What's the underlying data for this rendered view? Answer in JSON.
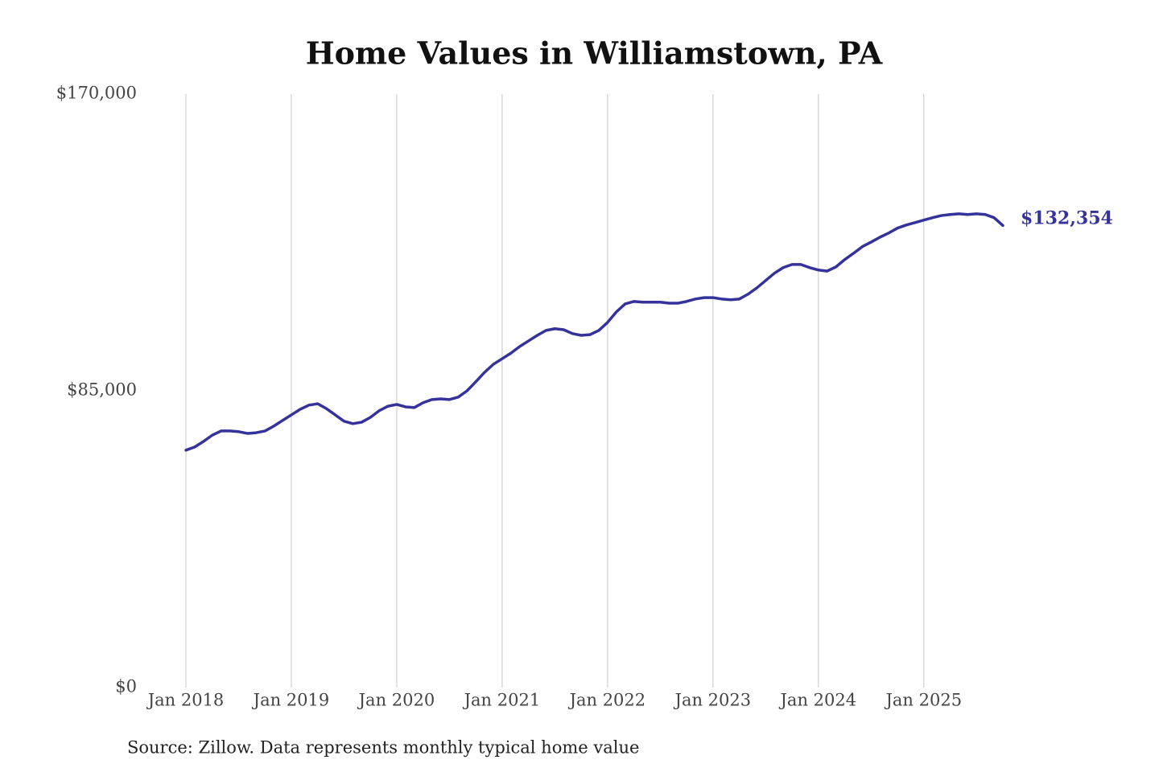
{
  "chart_data": {
    "type": "line",
    "title": "Home Values in Williamstown, PA",
    "source": "Source: Zillow. Data represents monthly typical home value",
    "x": [
      "2018-01",
      "2018-02",
      "2018-03",
      "2018-04",
      "2018-05",
      "2018-06",
      "2018-07",
      "2018-08",
      "2018-09",
      "2018-10",
      "2018-11",
      "2018-12",
      "2019-01",
      "2019-02",
      "2019-03",
      "2019-04",
      "2019-05",
      "2019-06",
      "2019-07",
      "2019-08",
      "2019-09",
      "2019-10",
      "2019-11",
      "2019-12",
      "2020-01",
      "2020-02",
      "2020-03",
      "2020-04",
      "2020-05",
      "2020-06",
      "2020-07",
      "2020-08",
      "2020-09",
      "2020-10",
      "2020-11",
      "2020-12",
      "2021-01",
      "2021-02",
      "2021-03",
      "2021-04",
      "2021-05",
      "2021-06",
      "2021-07",
      "2021-08",
      "2021-09",
      "2021-10",
      "2021-11",
      "2021-12",
      "2022-01",
      "2022-02",
      "2022-03",
      "2022-04",
      "2022-05",
      "2022-06",
      "2022-07",
      "2022-08",
      "2022-09",
      "2022-10",
      "2022-11",
      "2022-12",
      "2023-01",
      "2023-02",
      "2023-03",
      "2023-04",
      "2023-05",
      "2023-06",
      "2023-07",
      "2023-08",
      "2023-09",
      "2023-10",
      "2023-11",
      "2023-12",
      "2024-01",
      "2024-02",
      "2024-03",
      "2024-04",
      "2024-05",
      "2024-06",
      "2024-07",
      "2024-08",
      "2024-09",
      "2024-10",
      "2024-11",
      "2024-12",
      "2025-01",
      "2025-02",
      "2025-03",
      "2025-04",
      "2025-05",
      "2025-06",
      "2025-07",
      "2025-08",
      "2025-09",
      "2025-10"
    ],
    "series": [
      {
        "color": "#35339b",
        "values": [
          68000,
          68900,
          70500,
          72300,
          73500,
          73500,
          73300,
          72800,
          73000,
          73500,
          74900,
          76500,
          78100,
          79700,
          80900,
          81300,
          79900,
          78100,
          76300,
          75600,
          76000,
          77400,
          79300,
          80600,
          81100,
          80400,
          80200,
          81600,
          82500,
          82700,
          82500,
          83200,
          85000,
          87600,
          90300,
          92600,
          94200,
          95800,
          97700,
          99300,
          100900,
          102300,
          102800,
          102500,
          101400,
          100900,
          101100,
          102300,
          104600,
          107600,
          109900,
          110600,
          110400,
          110400,
          110400,
          110100,
          110100,
          110600,
          111300,
          111700,
          111700,
          111300,
          111100,
          111300,
          112700,
          114500,
          116600,
          118700,
          120300,
          121200,
          121200,
          120300,
          119600,
          119300,
          120500,
          122600,
          124400,
          126300,
          127600,
          129000,
          130200,
          131600,
          132500,
          133200,
          133900,
          134600,
          135200,
          135500,
          135700,
          135500,
          135700,
          135500,
          134600,
          132354
        ],
        "value_labels": [
          null,
          null,
          null,
          null,
          null,
          null,
          null,
          null,
          null,
          null,
          null,
          null,
          null,
          null,
          null,
          null,
          null,
          null,
          null,
          null,
          null,
          null,
          null,
          null,
          null,
          null,
          null,
          null,
          null,
          null,
          null,
          null,
          null,
          null,
          null,
          null,
          null,
          null,
          null,
          null,
          null,
          null,
          null,
          null,
          null,
          null,
          null,
          null,
          null,
          null,
          null,
          null,
          null,
          null,
          null,
          null,
          null,
          null,
          null,
          null,
          null,
          null,
          null,
          null,
          null,
          null,
          null,
          null,
          null,
          null,
          null,
          null,
          null,
          null,
          null,
          null,
          null,
          null,
          null,
          null,
          null,
          null,
          null,
          null,
          null,
          null,
          null,
          null,
          null,
          null,
          null,
          null,
          null,
          "$132,354"
        ]
      }
    ],
    "xlim": [
      "2018-01",
      "2025-10"
    ],
    "xticks": [
      {
        "value": "2018-01",
        "label": "Jan 2018"
      },
      {
        "value": "2019-01",
        "label": "Jan 2019"
      },
      {
        "value": "2020-01",
        "label": "Jan 2020"
      },
      {
        "value": "2021-01",
        "label": "Jan 2021"
      },
      {
        "value": "2022-01",
        "label": "Jan 2022"
      },
      {
        "value": "2023-01",
        "label": "Jan 2023"
      },
      {
        "value": "2024-01",
        "label": "Jan 2024"
      },
      {
        "value": "2025-01",
        "label": "Jan 2025"
      }
    ],
    "ylim": [
      0,
      170000
    ],
    "yticks": [
      {
        "value": 0,
        "label": "$0"
      },
      {
        "value": 85000,
        "label": "$85,000"
      },
      {
        "value": 170000,
        "label": "$170,000"
      }
    ],
    "grid": "x"
  }
}
